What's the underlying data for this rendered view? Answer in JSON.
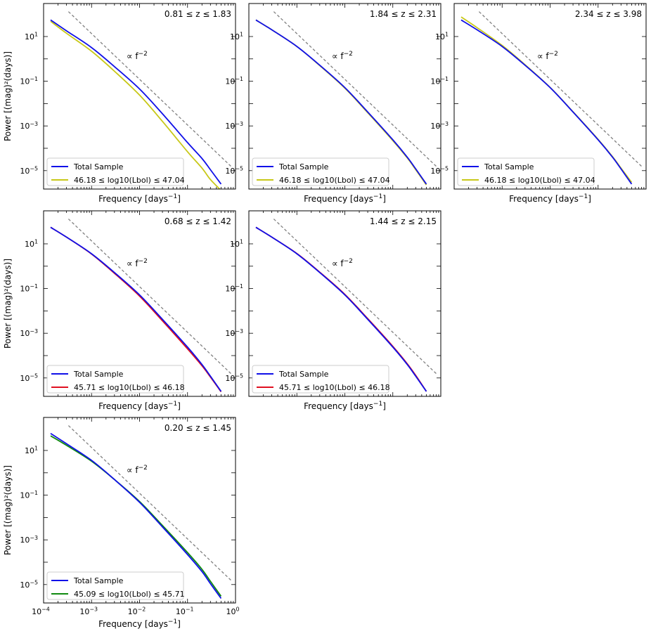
{
  "colors": {
    "total": "#1010e8",
    "yellow": "#c8c818",
    "red": "#e01020",
    "green": "#108a10",
    "reference": "#808080",
    "axis": "#000000"
  },
  "ref_label": "∝ f",
  "ref_label_exp": "−2",
  "xlabel": "Frequency [days",
  "xlabel_exp": "−1",
  "xlabel_close": "]",
  "ylabel": "Power [(mag)²(days)]",
  "legend_total": "Total Sample",
  "ytick_labels": [
    "10",
    "10",
    "10",
    "10"
  ],
  "ytick_exps": [
    "1",
    "−1",
    "−3",
    "−5"
  ],
  "xtick_labels": [
    "10",
    "10",
    "10",
    "10",
    "10"
  ],
  "xtick_exps": [
    "−4",
    "−3",
    "−2",
    "−1",
    "0"
  ],
  "chart_data": [
    {
      "type": "line",
      "title": "0.81 ≤ z ≤ 1.83",
      "xlabel": "Frequency [days⁻¹]",
      "ylabel": "Power [(mag)²(days)]",
      "xscale": "log",
      "yscale": "log",
      "xlim": [
        0.0001,
        1
      ],
      "ylim": [
        1.5e-06,
        300
      ],
      "legend": "lower-left",
      "annotation": "∝ f⁻²",
      "reference_line": {
        "x": [
          0.00033,
          0.82
        ],
        "y": [
          130,
          1.5e-05
        ]
      },
      "series": [
        {
          "name": "Total Sample",
          "color_key": "total",
          "x": [
            0.00014,
            0.0003,
            0.001,
            0.003,
            0.01,
            0.03,
            0.1,
            0.2,
            0.3,
            0.5
          ],
          "y": [
            55,
            18,
            3.2,
            0.45,
            0.045,
            0.0035,
            0.00018,
            3.5e-05,
            1.1e-05,
            2.5e-06
          ]
        },
        {
          "name": "46.18 ≤ log10(Lbol) ≤ 47.04",
          "color_key": "yellow",
          "x": [
            0.00014,
            0.0003,
            0.001,
            0.003,
            0.01,
            0.03,
            0.1,
            0.2,
            0.3,
            0.5
          ],
          "y": [
            48,
            14,
            2.2,
            0.28,
            0.024,
            0.0016,
            7e-05,
            1.3e-05,
            4e-06,
            1.3e-06
          ]
        }
      ]
    },
    {
      "type": "line",
      "title": "1.84 ≤ z ≤ 2.31",
      "xlabel": "Frequency [days⁻¹]",
      "ylabel": "",
      "xscale": "log",
      "yscale": "log",
      "xlim": [
        0.0001,
        1
      ],
      "ylim": [
        1.5e-06,
        300
      ],
      "legend": "lower-left",
      "annotation": "∝ f⁻²",
      "reference_line": {
        "x": [
          0.00033,
          0.82
        ],
        "y": [
          130,
          1.5e-05
        ]
      },
      "series": [
        {
          "name": "Total Sample",
          "color_key": "total",
          "x": [
            0.00014,
            0.0003,
            0.001,
            0.003,
            0.01,
            0.03,
            0.1,
            0.2,
            0.3,
            0.5
          ],
          "y": [
            55,
            20,
            3.6,
            0.52,
            0.052,
            0.0042,
            0.00024,
            4e-05,
            1.2e-05,
            2.5e-06
          ]
        },
        {
          "name": "46.18 ≤ log10(Lbol) ≤ 47.04",
          "color_key": "yellow",
          "x": [
            0.00014,
            0.0003,
            0.001,
            0.003,
            0.01,
            0.03,
            0.1,
            0.2,
            0.3,
            0.5
          ],
          "y": [
            55,
            20,
            3.6,
            0.5,
            0.049,
            0.0039,
            0.00022,
            3.7e-05,
            1.1e-05,
            2.3e-06
          ]
        }
      ]
    },
    {
      "type": "line",
      "title": "2.34 ≤ z ≤ 3.98",
      "xlabel": "Frequency [days⁻¹]",
      "ylabel": "",
      "xscale": "log",
      "yscale": "log",
      "xlim": [
        0.0001,
        1
      ],
      "ylim": [
        1.5e-06,
        300
      ],
      "legend": "lower-left",
      "annotation": "∝ f⁻²",
      "reference_line": {
        "x": [
          0.00033,
          0.82
        ],
        "y": [
          130,
          1.5e-05
        ]
      },
      "series": [
        {
          "name": "Total Sample",
          "color_key": "total",
          "x": [
            0.00014,
            0.0003,
            0.001,
            0.003,
            0.01,
            0.03,
            0.1,
            0.2,
            0.3,
            0.5
          ],
          "y": [
            55,
            20,
            3.6,
            0.52,
            0.052,
            0.0042,
            0.00024,
            4e-05,
            1.2e-05,
            2.5e-06
          ]
        },
        {
          "name": "46.18 ≤ log10(Lbol) ≤ 47.04",
          "color_key": "yellow",
          "x": [
            0.00014,
            0.0003,
            0.001,
            0.003,
            0.01,
            0.03,
            0.1,
            0.2,
            0.3,
            0.5
          ],
          "y": [
            75,
            25,
            4.0,
            0.55,
            0.053,
            0.0043,
            0.00025,
            4.2e-05,
            1.3e-05,
            3e-06
          ]
        }
      ]
    },
    {
      "type": "line",
      "title": "0.68 ≤ z ≤ 1.42",
      "xlabel": "Frequency [days⁻¹]",
      "ylabel": "Power [(mag)²(days)]",
      "xscale": "log",
      "yscale": "log",
      "xlim": [
        0.0001,
        1
      ],
      "ylim": [
        1.5e-06,
        300
      ],
      "legend": "lower-left",
      "annotation": "∝ f⁻²",
      "reference_line": {
        "x": [
          0.00033,
          0.82
        ],
        "y": [
          130,
          1.5e-05
        ]
      },
      "series": [
        {
          "name": "Total Sample",
          "color_key": "total",
          "x": [
            0.00014,
            0.0003,
            0.001,
            0.003,
            0.01,
            0.03,
            0.1,
            0.2,
            0.3,
            0.5
          ],
          "y": [
            55,
            20,
            3.6,
            0.52,
            0.052,
            0.0042,
            0.00024,
            4e-05,
            1.2e-05,
            2.5e-06
          ]
        },
        {
          "name": "45.71 ≤ log10(Lbol) ≤ 46.18",
          "color_key": "red",
          "x": [
            0.00014,
            0.0003,
            0.001,
            0.003,
            0.01,
            0.03,
            0.1,
            0.2,
            0.3,
            0.5
          ],
          "y": [
            55,
            20,
            3.5,
            0.48,
            0.046,
            0.0036,
            0.0002,
            3.5e-05,
            1.1e-05,
            2.4e-06
          ]
        }
      ]
    },
    {
      "type": "line",
      "title": "1.44 ≤ z ≤ 2.15",
      "xlabel": "Frequency [days⁻¹]",
      "ylabel": "",
      "xscale": "log",
      "yscale": "log",
      "xlim": [
        0.0001,
        1
      ],
      "ylim": [
        1.5e-06,
        300
      ],
      "legend": "lower-left",
      "annotation": "∝ f⁻²",
      "reference_line": {
        "x": [
          0.00033,
          0.82
        ],
        "y": [
          130,
          1.5e-05
        ]
      },
      "series": [
        {
          "name": "Total Sample",
          "color_key": "total",
          "x": [
            0.00014,
            0.0003,
            0.001,
            0.003,
            0.01,
            0.03,
            0.1,
            0.2,
            0.3,
            0.5
          ],
          "y": [
            55,
            20,
            3.6,
            0.52,
            0.052,
            0.0042,
            0.00024,
            4e-05,
            1.2e-05,
            2.5e-06
          ]
        },
        {
          "name": "45.71 ≤ log10(Lbol) ≤ 46.18",
          "color_key": "red",
          "x": [
            0.00014,
            0.0003,
            0.001,
            0.003,
            0.01,
            0.03,
            0.1,
            0.2,
            0.3,
            0.5
          ],
          "y": [
            55,
            20,
            3.7,
            0.54,
            0.055,
            0.0045,
            0.00026,
            4.3e-05,
            1.3e-05,
            2.5e-06
          ]
        }
      ]
    },
    {
      "type": "line",
      "title": "0.20 ≤ z ≤ 1.45",
      "xlabel": "Frequency [days⁻¹]",
      "ylabel": "Power [(mag)²(days)]",
      "xscale": "log",
      "yscale": "log",
      "xlim": [
        0.0001,
        1
      ],
      "ylim": [
        1.5e-06,
        300
      ],
      "legend": "lower-left",
      "annotation": "∝ f⁻²",
      "reference_line": {
        "x": [
          0.00033,
          0.82
        ],
        "y": [
          130,
          1.5e-05
        ]
      },
      "series": [
        {
          "name": "Total Sample",
          "color_key": "total",
          "x": [
            0.00014,
            0.0003,
            0.001,
            0.003,
            0.01,
            0.03,
            0.1,
            0.2,
            0.3,
            0.5
          ],
          "y": [
            58,
            20,
            3.6,
            0.5,
            0.048,
            0.0038,
            0.00022,
            3.8e-05,
            1.1e-05,
            2.4e-06
          ]
        },
        {
          "name": "45.09 ≤ log10(Lbol) ≤ 45.71",
          "color_key": "green",
          "x": [
            0.00014,
            0.0003,
            0.001,
            0.003,
            0.01,
            0.03,
            0.1,
            0.2,
            0.3,
            0.5
          ],
          "y": [
            45,
            17,
            3.3,
            0.5,
            0.052,
            0.0044,
            0.00027,
            4.8e-05,
            1.4e-05,
            3e-06
          ]
        }
      ]
    }
  ]
}
